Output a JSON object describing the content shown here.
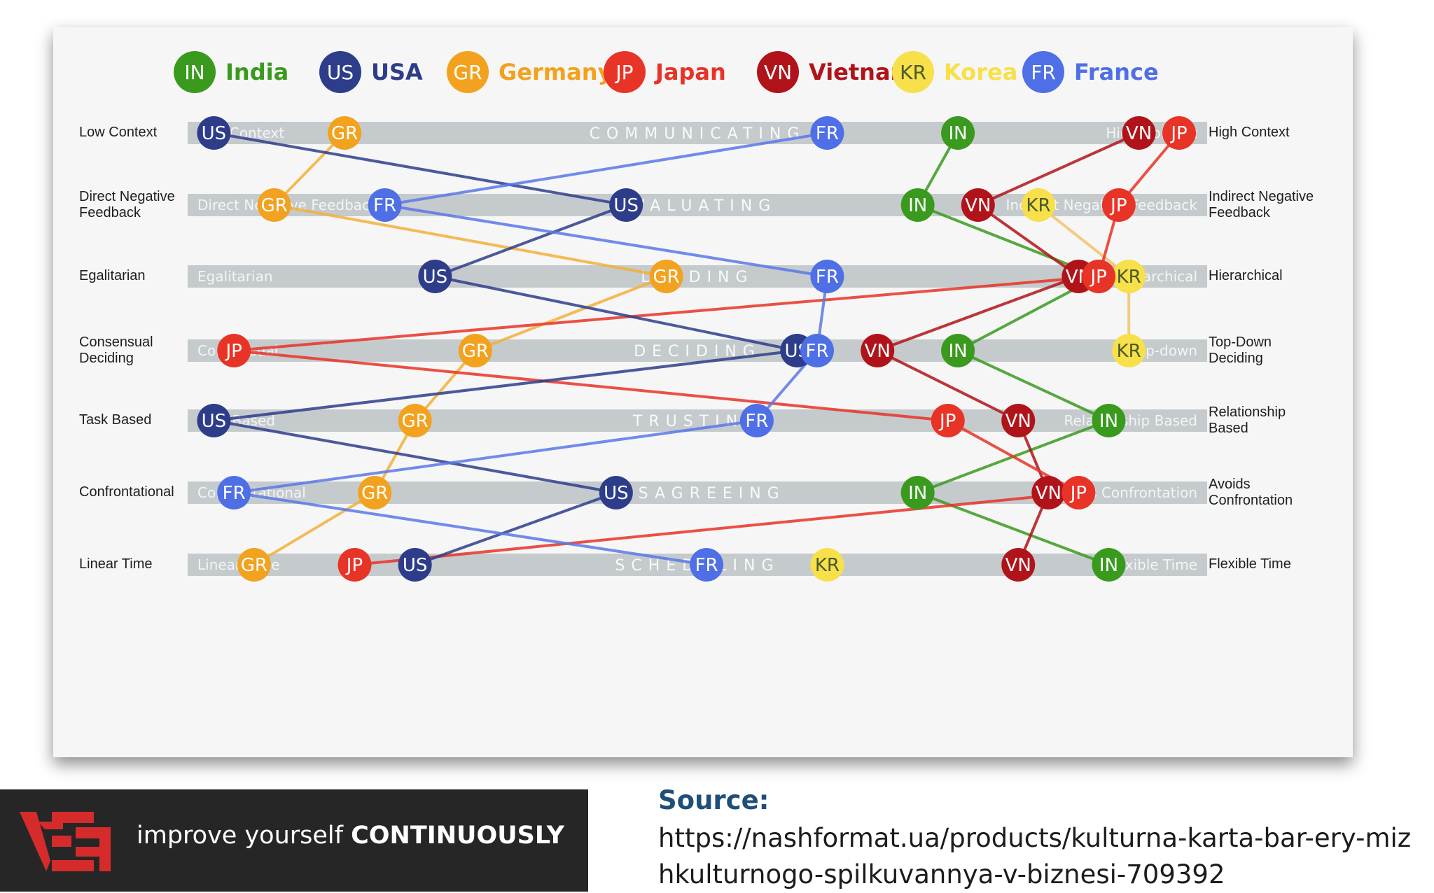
{
  "legend": [
    {
      "code": "IN",
      "name": "India",
      "color": "#3a9a1e"
    },
    {
      "code": "US",
      "name": "USA",
      "color": "#2e3d8a"
    },
    {
      "code": "GR",
      "name": "Germany",
      "color": "#f2a21e"
    },
    {
      "code": "JP",
      "name": "Japan",
      "color": "#e83327"
    },
    {
      "code": "VN",
      "name": "Vietnam",
      "color": "#b0141a"
    },
    {
      "code": "KR",
      "name": "Korea",
      "color": "#f7e04a"
    },
    {
      "code": "FR",
      "name": "France",
      "color": "#4f6fe6"
    }
  ],
  "line_colors": {
    "IN": "#3a9a1e",
    "US": "#2e3d8a",
    "GR": "#f2b03a",
    "JP": "#e83327",
    "VN": "#b0141a",
    "KR": "#f2c36a",
    "FR": "#5a78e6"
  },
  "korea_text_color": "#4a5a2a",
  "scales": [
    {
      "name": "COMMUNICATING",
      "left": "Low Context",
      "right": "High Context",
      "band_left_text": "Low Context",
      "band_right_text": "High Context"
    },
    {
      "name": "EVALUATING",
      "left": "Direct Negative\nFeedback",
      "right": "Indirect Negative\nFeedback",
      "band_left_text": "Direct Negative Feedback",
      "band_right_text": "Indirect Negative Feedback"
    },
    {
      "name": "LEADING",
      "left": "Egalitarian",
      "right": "Hierarchical",
      "band_left_text": "Egalitarian",
      "band_right_text": "Hierarchical"
    },
    {
      "name": "DECIDING",
      "left": "Consensual\nDeciding",
      "right": "Top-Down\nDeciding",
      "band_left_text": "Consensual",
      "band_right_text": "Top-down"
    },
    {
      "name": "TRUSTING",
      "left": "Task Based",
      "right": "Relationship\nBased",
      "band_left_text": "Task Based",
      "band_right_text": "Relationship Based"
    },
    {
      "name": "DISAGREEING",
      "left": "Confrontational",
      "right": "Avoids\nConfrontation",
      "band_left_text": "Confrontational",
      "band_right_text": "Avoids Confrontation"
    },
    {
      "name": "SCHEDULING",
      "left": "Linear Time",
      "right": "Flexible Time",
      "band_left_text": "Linear Time",
      "band_right_text": "Flexible Time"
    }
  ],
  "positions": {
    "IN": [
      0.78,
      0.74,
      0.92,
      0.78,
      0.93,
      0.74,
      0.93
    ],
    "US": [
      0.04,
      0.45,
      0.26,
      0.62,
      0.04,
      0.44,
      0.24
    ],
    "GR": [
      0.17,
      0.1,
      0.49,
      0.3,
      0.24,
      0.2,
      0.08
    ],
    "JP": [
      1.0,
      0.94,
      0.92,
      0.06,
      0.77,
      0.9,
      0.18
    ],
    "VN": [
      0.96,
      0.8,
      0.9,
      0.7,
      0.84,
      0.87,
      0.84
    ],
    "KR": [
      null,
      0.86,
      0.95,
      0.95,
      null,
      null,
      0.65
    ],
    "FR": [
      0.65,
      0.21,
      0.65,
      0.64,
      0.58,
      0.06,
      0.53
    ]
  },
  "footer": {
    "slogan_regular": "improve yourself",
    "slogan_bold": "CONTINUOUSLY",
    "source_title": "Source:",
    "source_url": "https://nashformat.ua/products/kulturna-karta-bar-ery-mizhkulturnogo-spilkuvannya-v-biznesi-709392"
  }
}
